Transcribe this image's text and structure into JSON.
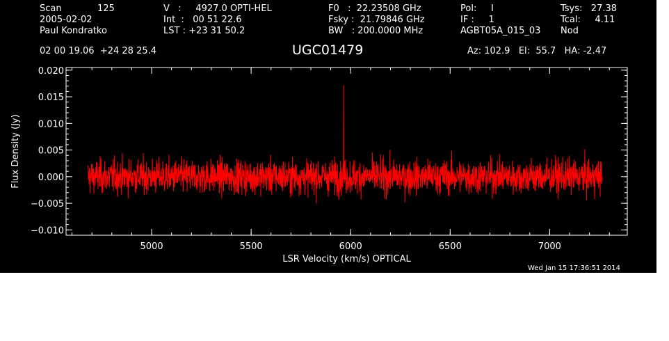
{
  "header": {
    "scan_label": "Scan",
    "scan_number": "125",
    "date": "2005-02-02",
    "observer": "Paul Kondratko",
    "velocity_line": "V   :     4927.0 OPTI-HEL",
    "int_line": "Int  :   00 51 22.6",
    "lst_line": "LST : +23 31 50.2",
    "f0_line": "F0   :  22.23508 GHz",
    "fsky_line": "Fsky :  21.79846 GHz",
    "bw_line": "BW   : 200.0000 MHz",
    "pol_line": "Pol:     I",
    "if_line": "IF :     1",
    "project": "AGBT05A_015_03",
    "tsys_line": "Tsys:   27.38",
    "tcal_line": "Tcal:     4.11",
    "proc": "Nod",
    "coords": "02 00 19.06  +24 28 25.4",
    "source": "UGC01479",
    "azelha": "Az: 102.9   El:  55.7   HA: -2.47"
  },
  "timestamp": "Wed Jan 15 17:36:51 2014",
  "colors": {
    "background": "#000000",
    "axes": "#ffffff",
    "spectrum": "#ff0000"
  },
  "chart_data": {
    "type": "line",
    "title": "UGC01479",
    "xlabel": "LSR Velocity (km/s) OPTICAL",
    "ylabel": "Flux Density (Jy)",
    "xlim": [
      4570,
      7390
    ],
    "ylim": [
      -0.011,
      0.0205
    ],
    "x_ticks": [
      5000,
      5500,
      6000,
      6500,
      7000
    ],
    "x_tick_labels": [
      "5000",
      "5500",
      "6000",
      "6500",
      "7000"
    ],
    "y_ticks": [
      -0.01,
      -0.005,
      0.0,
      0.005,
      0.01,
      0.015,
      0.02
    ],
    "y_tick_labels": [
      "−0.010",
      "−0.005",
      "0.000",
      "0.005",
      "0.010",
      "0.015",
      "0.020"
    ],
    "grid": false,
    "series": [
      {
        "x_range": [
          4680,
          7265
        ],
        "noise_rms": 0.0016,
        "spike": {
          "x": 5965,
          "y": 0.0172
        }
      }
    ]
  }
}
